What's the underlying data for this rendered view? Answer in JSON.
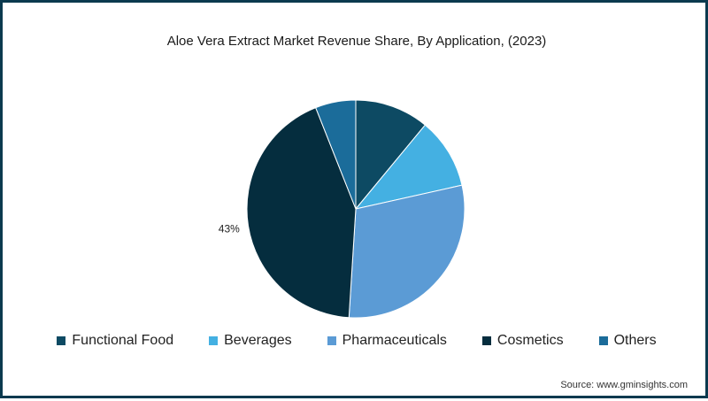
{
  "chart_data": {
    "type": "pie",
    "title": "Aloe Vera Extract Market Revenue Share, By Application, (2023)",
    "categories": [
      "Functional Food",
      "Beverages",
      "Pharmaceuticals",
      "Cosmetics",
      "Others"
    ],
    "values": [
      11,
      10.5,
      29.5,
      43,
      6
    ],
    "colors": [
      "#0d4a63",
      "#44b0e2",
      "#5b9bd5",
      "#052d3e",
      "#1b6c9a"
    ],
    "data_labels": [
      "",
      "",
      "",
      "43%",
      ""
    ],
    "legend_position": "bottom"
  },
  "source": "Source: www.gminsights.com"
}
